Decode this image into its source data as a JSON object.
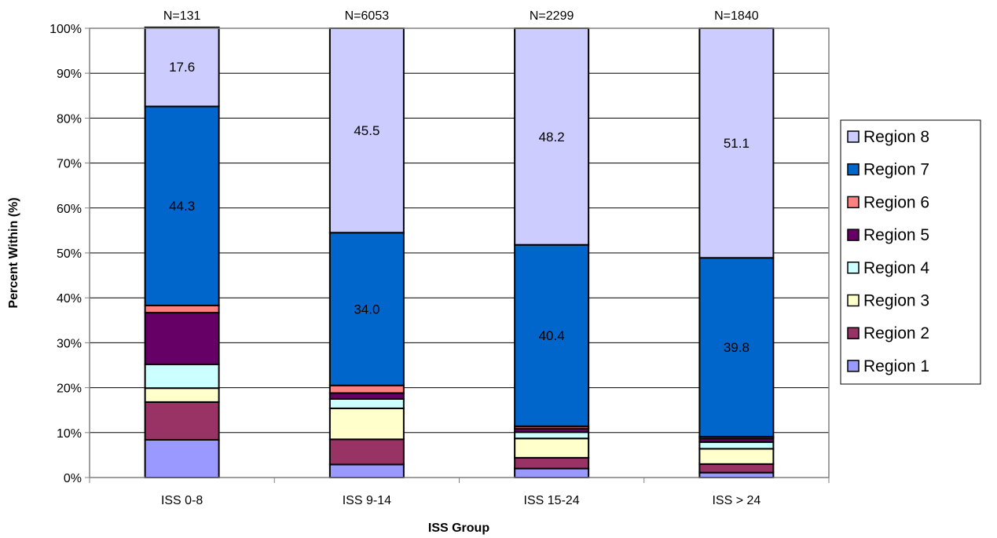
{
  "chart_data": {
    "type": "bar",
    "stacked": true,
    "xlabel": "ISS Group",
    "ylabel": "Percent Within (%)",
    "ylim": [
      0,
      100
    ],
    "yticks": [
      "0%",
      "10%",
      "20%",
      "30%",
      "40%",
      "50%",
      "60%",
      "70%",
      "80%",
      "90%",
      "100%"
    ],
    "categories": [
      "ISS 0-8",
      "ISS 9-14",
      "ISS 15-24",
      "ISS > 24"
    ],
    "n_labels": [
      "N=131",
      "N=6053",
      "N=2299",
      "N=1840"
    ],
    "grid": true,
    "legend_position": "right",
    "series": [
      {
        "name": "Region 1",
        "color": "#9999ff",
        "values": [
          8.4,
          2.9,
          2.0,
          1.1
        ]
      },
      {
        "name": "Region 2",
        "color": "#993366",
        "values": [
          8.4,
          5.6,
          2.4,
          1.9
        ]
      },
      {
        "name": "Region 3",
        "color": "#ffffcc",
        "values": [
          3.1,
          6.9,
          4.3,
          3.4
        ]
      },
      {
        "name": "Region 4",
        "color": "#ccffff",
        "values": [
          5.3,
          2.1,
          1.4,
          1.5
        ]
      },
      {
        "name": "Region 5",
        "color": "#660066",
        "values": [
          11.5,
          1.3,
          0.8,
          0.8
        ]
      },
      {
        "name": "Region 6",
        "color": "#ff8080",
        "values": [
          1.6,
          1.7,
          0.5,
          0.4
        ]
      },
      {
        "name": "Region 7",
        "color": "#0066cc",
        "values": [
          44.3,
          34.0,
          40.4,
          39.8
        ]
      },
      {
        "name": "Region 8",
        "color": "#ccccff",
        "values": [
          17.6,
          45.5,
          48.2,
          51.1
        ]
      }
    ],
    "data_labels": [
      {
        "series": "Region 7",
        "texts": [
          "44.3",
          "34.0",
          "40.4",
          "39.8"
        ]
      },
      {
        "series": "Region 8",
        "texts": [
          "17.6",
          "45.5",
          "48.2",
          "51.1"
        ]
      }
    ]
  }
}
